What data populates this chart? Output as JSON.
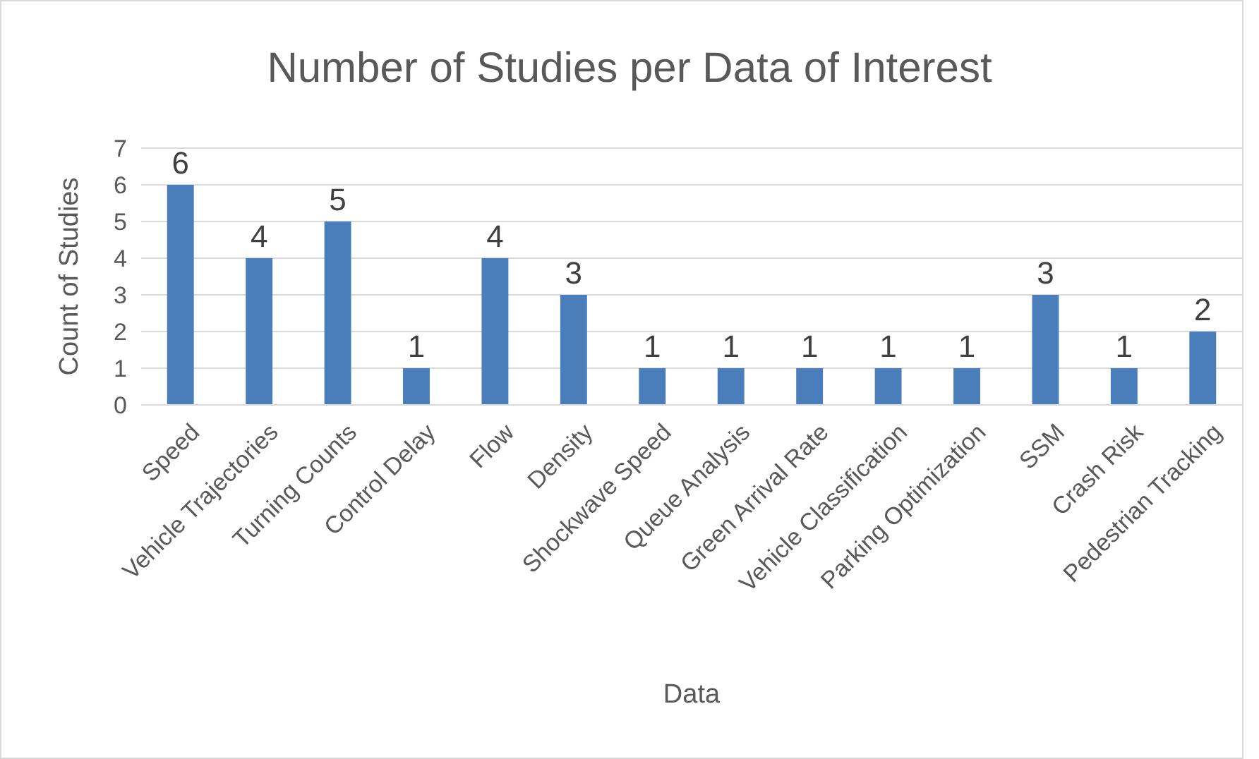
{
  "chart_data": {
    "type": "bar",
    "title": "Number of Studies per Data of Interest",
    "xlabel": "Data",
    "ylabel": "Count of Studies",
    "categories": [
      "Speed",
      "Vehicle Trajectories",
      "Turning Counts",
      "Control Delay",
      "Flow",
      "Density",
      "Shockwave Speed",
      "Queue Analysis",
      "Green Arrival Rate",
      "Vehicle Classification",
      "Parking Optimization",
      "SSM",
      "Crash Risk",
      "Pedestrian Tracking"
    ],
    "values": [
      6,
      4,
      5,
      1,
      4,
      3,
      1,
      1,
      1,
      1,
      1,
      3,
      1,
      2
    ],
    "color": "#4a7ebb",
    "ylim": [
      0,
      7
    ],
    "yticks": [
      0,
      1,
      2,
      3,
      4,
      5,
      6,
      7
    ],
    "grid": "y",
    "data_labels": true
  }
}
